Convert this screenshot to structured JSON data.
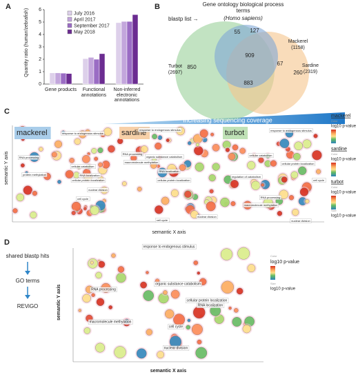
{
  "panel_labels": [
    "A",
    "B",
    "C",
    "D"
  ],
  "chart_data": {
    "type": "bar",
    "ylabel": "Quantity ratio (human/zebrafish)",
    "categories": [
      "Gene products",
      "Functional annotations",
      "Non-inferred electronic annotations"
    ],
    "series": [
      {
        "name": "July 2016",
        "color": "#ddd0ea",
        "values": [
          0.9,
          2.05,
          4.95
        ]
      },
      {
        "name": "April 2017",
        "color": "#c3a6dc",
        "values": [
          0.9,
          2.15,
          5.05
        ]
      },
      {
        "name": "September 2017",
        "color": "#9a6cc4",
        "values": [
          0.88,
          2.0,
          5.05
        ]
      },
      {
        "name": "May 2018",
        "color": "#6b2c91",
        "values": [
          0.85,
          2.45,
          5.6
        ]
      }
    ],
    "ylim": [
      0,
      6
    ],
    "yticks": [
      0,
      1,
      2,
      3,
      4,
      5,
      6
    ],
    "legend": "upper left"
  },
  "venn": {
    "lead": "blastp list →",
    "title": "Gene ontology biological process terms",
    "title_species": "(Homo sapiens)",
    "sets": [
      {
        "name": "Mackerel",
        "size": "(1158)",
        "color": "#7ea7d6"
      },
      {
        "name": "Turbot",
        "size": "(2697)",
        "color": "#99d199"
      },
      {
        "name": "Sardine",
        "size": "(2319)",
        "color": "#f5c58c"
      }
    ],
    "regions": [
      "55",
      "127",
      "909",
      "67",
      "850",
      "260",
      "883"
    ]
  },
  "panel_c": {
    "banner": "Increasing sequencing coverage",
    "axis_y": "semantic Y axis",
    "axis_x": "semantic X axis",
    "panels": [
      {
        "name": "mackerel",
        "labels": [
          "response to endogenous stimulus",
          "RNA processing",
          "cellular catabolism",
          "protein methylation",
          "RNA localization",
          "cellular protein localization",
          "nuclear division",
          "cell cycle"
        ]
      },
      {
        "name": "sardine",
        "labels": [
          "response to endogenous stimulus",
          "RNA processing",
          "organic substance catabolism",
          "macromolecule methylation",
          "cellular protein localization",
          "RNA localization",
          "cell cycle",
          "nuclear division"
        ]
      },
      {
        "name": "turbot",
        "labels": [
          "response to endogenous stimulus",
          "cellular catabolism",
          "cellular protein localization",
          "regulation of catabolism",
          "cell cycle",
          "RNA processing",
          "macromolecule methylation",
          "nuclear division"
        ]
      }
    ],
    "legend": [
      {
        "name": "mackerel",
        "color_word": "Color",
        "scale": "log10 p-value"
      },
      {
        "name": "sardine",
        "color_word": "Color",
        "scale": "log10 p-value"
      },
      {
        "name": "turbot",
        "color_word": "Color",
        "scale": "log10 p-value"
      }
    ],
    "size_word": "Size",
    "size_scale": "log10 p-value"
  },
  "panel_d": {
    "steps": [
      "shared blastp hits",
      "GO terms",
      "REViGO"
    ],
    "axis_y": "semantic Y axis",
    "axis_x": "semantic X axis",
    "labels": [
      "response to endogenous stimulus",
      "RNA processing",
      "organic substance catabolism",
      "cellular protein localization",
      "RNA localization",
      "macromolecule methylation",
      "cell cycle",
      "nuclear division"
    ],
    "color_word": "Color",
    "scale": "log10 p-value",
    "size_word": "Size",
    "size_scale": "log10 p-value"
  }
}
